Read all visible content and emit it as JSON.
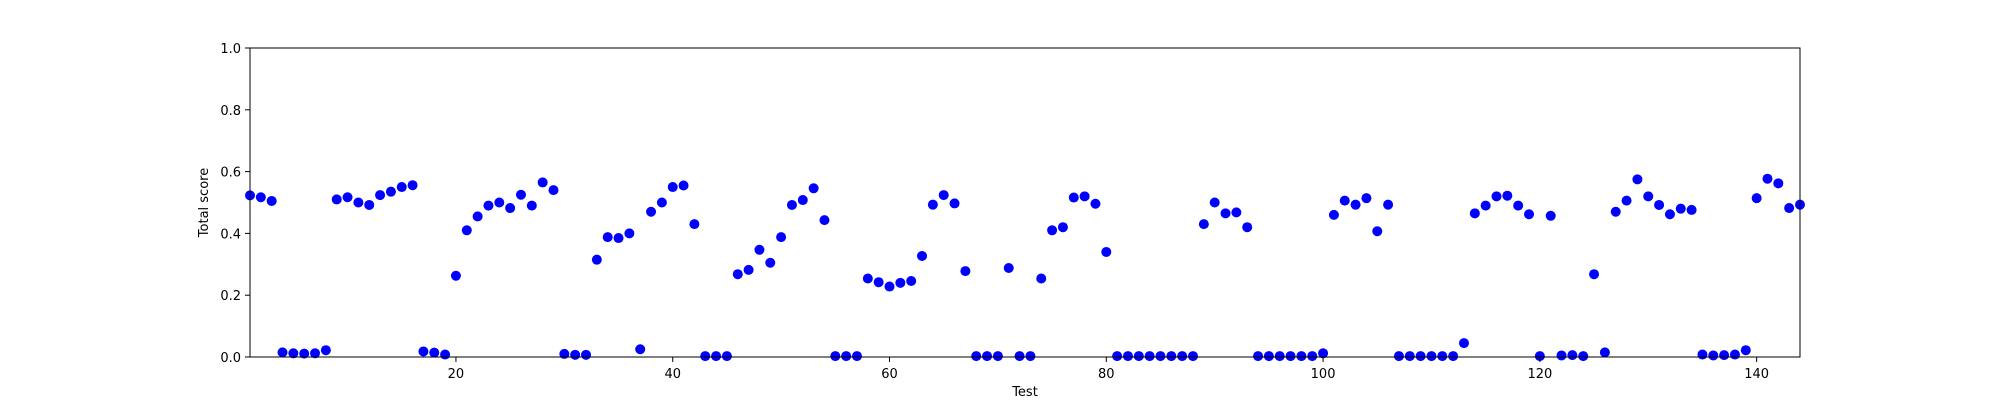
{
  "chart_data": {
    "type": "scatter",
    "title": "",
    "xlabel": "Test",
    "ylabel": "Total score",
    "xlim": [
      1,
      144
    ],
    "ylim": [
      0.0,
      1.0
    ],
    "x_ticks": [
      20,
      40,
      60,
      80,
      100,
      120,
      140
    ],
    "x_tick_labels": [
      "20",
      "40",
      "60",
      "80",
      "100",
      "120",
      "140"
    ],
    "y_ticks": [
      0.0,
      0.2,
      0.4,
      0.6,
      0.8,
      1.0
    ],
    "y_tick_labels": [
      "0.0",
      "0.2",
      "0.4",
      "0.6",
      "0.8",
      "1.0"
    ],
    "grid": false,
    "marker_color": "#0000ff",
    "series": [
      {
        "x": [
          1,
          2,
          3,
          4,
          5,
          6,
          7,
          8,
          9,
          10,
          11,
          12,
          13,
          14,
          15,
          16,
          17,
          18,
          19,
          20,
          21,
          22,
          23,
          24,
          25,
          26,
          27,
          28,
          29,
          30,
          31,
          32,
          33,
          34,
          35,
          36,
          37,
          38,
          39,
          40,
          41,
          42,
          43,
          44,
          45,
          46,
          47,
          48,
          49,
          50,
          51,
          52,
          53,
          54,
          55,
          56,
          57,
          58,
          59,
          60,
          61,
          62,
          63,
          64,
          65,
          66,
          67,
          68,
          69,
          70,
          71,
          72,
          73,
          74,
          75,
          76,
          77,
          78,
          79,
          80,
          81,
          82,
          83,
          84,
          85,
          86,
          87,
          88,
          89,
          90,
          91,
          92,
          93,
          94,
          95,
          96,
          97,
          98,
          99,
          100,
          101,
          102,
          103,
          104,
          105,
          106,
          107,
          108,
          109,
          110,
          111,
          112,
          113,
          114,
          115,
          116,
          117,
          118,
          119,
          120,
          121,
          122,
          123,
          124,
          125,
          126,
          127,
          128,
          129,
          130,
          131,
          132,
          133,
          134,
          135,
          136,
          137,
          138,
          139,
          140,
          141,
          142,
          143,
          144
        ],
        "y": [
          0.523,
          0.517,
          0.505,
          0.015,
          0.012,
          0.011,
          0.012,
          0.022,
          0.51,
          0.517,
          0.5,
          0.492,
          0.524,
          0.535,
          0.55,
          0.556,
          0.018,
          0.014,
          0.008,
          0.263,
          0.41,
          0.455,
          0.49,
          0.5,
          0.482,
          0.525,
          0.49,
          0.565,
          0.54,
          0.01,
          0.007,
          0.007,
          0.315,
          0.388,
          0.385,
          0.4,
          0.025,
          0.47,
          0.5,
          0.55,
          0.555,
          0.43,
          0.003,
          0.003,
          0.003,
          0.268,
          0.282,
          0.347,
          0.305,
          0.388,
          0.492,
          0.508,
          0.546,
          0.443,
          0.003,
          0.003,
          0.003,
          0.254,
          0.242,
          0.228,
          0.24,
          0.246,
          0.327,
          0.493,
          0.524,
          0.497,
          0.278,
          0.003,
          0.003,
          0.003,
          0.288,
          0.003,
          0.003,
          0.254,
          0.41,
          0.42,
          0.516,
          0.52,
          0.496,
          0.34,
          0.003,
          0.003,
          0.003,
          0.003,
          0.003,
          0.003,
          0.003,
          0.003,
          0.43,
          0.5,
          0.465,
          0.468,
          0.42,
          0.003,
          0.003,
          0.003,
          0.003,
          0.003,
          0.003,
          0.012,
          0.46,
          0.506,
          0.493,
          0.514,
          0.407,
          0.493,
          0.003,
          0.003,
          0.003,
          0.003,
          0.003,
          0.003,
          0.045,
          0.465,
          0.49,
          0.52,
          0.522,
          0.49,
          0.462,
          0.003,
          0.457,
          0.005,
          0.006,
          0.003,
          0.268,
          0.015,
          0.47,
          0.506,
          0.575,
          0.52,
          0.492,
          0.462,
          0.48,
          0.476,
          0.008,
          0.005,
          0.006,
          0.008,
          0.022,
          0.514,
          0.577,
          0.562,
          0.482,
          0.493
        ]
      }
    ]
  }
}
